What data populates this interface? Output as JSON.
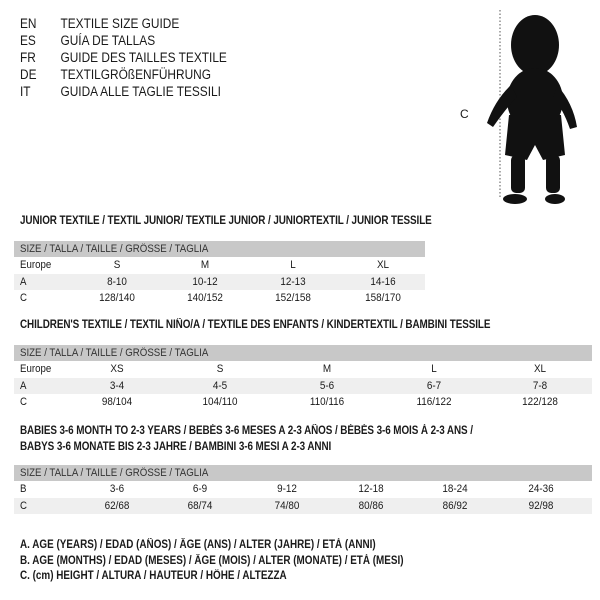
{
  "header": [
    {
      "code": "EN",
      "text": "TEXTILE SIZE GUIDE"
    },
    {
      "code": "ES",
      "text": "GUÍA DE TALLAS"
    },
    {
      "code": "FR",
      "text": "GUIDE DES TAILLES TEXTILE"
    },
    {
      "code": "DE",
      "text": "TEXTILGRÖßENFÜHRUNG"
    },
    {
      "code": "IT",
      "text": "GUIDA ALLE TAGLIE TESSILI"
    }
  ],
  "figure": {
    "measure_label": "C",
    "icon": "child-silhouette-icon"
  },
  "size_bar_label": "SIZE / TALLA / TAILLE / GRÖSSE / TAGLIA",
  "tables": [
    {
      "title": "JUNIOR TEXTILE / TEXTIL JUNIOR/ TEXTILE JUNIOR / JUNIORTEXTIL / JUNIOR TESSILE",
      "rows": [
        {
          "label": "Europe",
          "values": [
            "S",
            "M",
            "L",
            "XL"
          ]
        },
        {
          "label": "A",
          "values": [
            "8-10",
            "10-12",
            "12-13",
            "14-16"
          ]
        },
        {
          "label": "C",
          "values": [
            "128/140",
            "140/152",
            "152/158",
            "158/170"
          ]
        }
      ]
    },
    {
      "title": "CHILDREN'S TEXTILE / TEXTIL NIÑO/A / TEXTILE DES ENFANTS / KINDERTEXTIL / BAMBINI TESSILE",
      "rows": [
        {
          "label": "Europe",
          "values": [
            "XS",
            "S",
            "M",
            "L",
            "XL"
          ]
        },
        {
          "label": "A",
          "values": [
            "3-4",
            "4-5",
            "5-6",
            "6-7",
            "7-8"
          ]
        },
        {
          "label": "C",
          "values": [
            "98/104",
            "104/110",
            "110/116",
            "116/122",
            "122/128"
          ]
        }
      ]
    },
    {
      "title": "BABIES 3-6 MONTH TO 2-3 YEARS / BEBÉS 3-6 MESES A 2-3 AÑOS / BÉBÉS 3-6 MOIS À 2-3 ANS /",
      "title2": "BABYS 3-6 MONATE BIS 2-3 JAHRE / BAMBINI 3-6 MESI A 2-3 ANNI",
      "rows": [
        {
          "label": "B",
          "values": [
            "3-6",
            "6-9",
            "9-12",
            "12-18",
            "18-24",
            "24-36"
          ]
        },
        {
          "label": "C",
          "values": [
            "62/68",
            "68/74",
            "74/80",
            "80/86",
            "86/92",
            "92/98"
          ]
        }
      ]
    }
  ],
  "legend": [
    "A. AGE (YEARS) / EDAD (AÑOS) / ÂGE (ANS) / ALTER (JAHRE) / ETÀ (ANNI)",
    "B. AGE (MONTHS) / EDAD (MESES) / ÂGE (MOIS) / ALTER (MONATE) / ETÀ (MESI)",
    "C. (cm) HEIGHT / ALTURA / HAUTEUR / HÖHE / ALTEZZA"
  ]
}
